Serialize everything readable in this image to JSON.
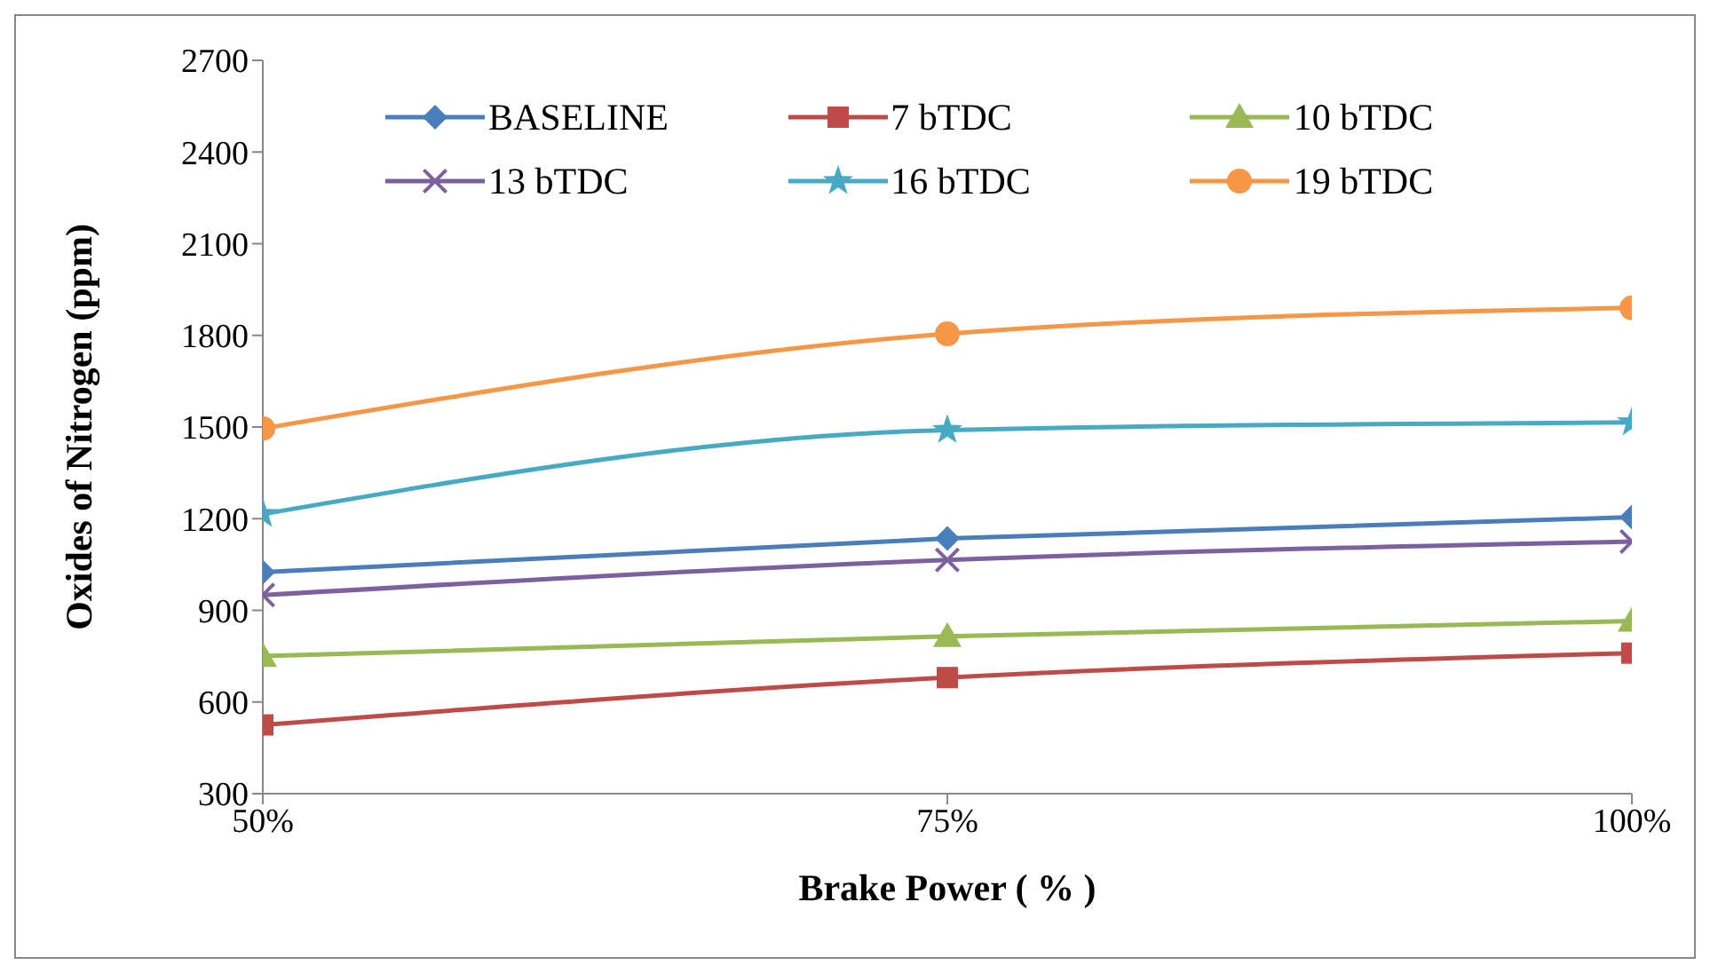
{
  "chart_data": {
    "type": "line",
    "xlabel": "Brake Power ( % )",
    "ylabel": "Oxides of Nitrogen (ppm)",
    "categories": [
      "50%",
      "75%",
      "100%"
    ],
    "ylim": [
      300,
      2700
    ],
    "yticks": [
      300,
      600,
      900,
      1200,
      1500,
      1800,
      2100,
      2400,
      2700
    ],
    "grid": false,
    "legend": "top",
    "line_style": "solid",
    "series": [
      {
        "name": "BASELINE",
        "color": "#4a7ebb",
        "marker": "diamond",
        "values": [
          1025,
          1135,
          1205
        ]
      },
      {
        "name": "7 bTDC",
        "color": "#be4b48",
        "marker": "square",
        "values": [
          525,
          680,
          760
        ]
      },
      {
        "name": "10 bTDC",
        "color": "#98b954",
        "marker": "triangle",
        "values": [
          750,
          815,
          865
        ]
      },
      {
        "name": "13 bTDC",
        "color": "#7d60a0",
        "marker": "cross",
        "values": [
          950,
          1065,
          1125
        ]
      },
      {
        "name": "16 bTDC",
        "color": "#46aac5",
        "marker": "star",
        "values": [
          1215,
          1490,
          1515
        ]
      },
      {
        "name": "19 bTDC",
        "color": "#f79646",
        "marker": "circle",
        "values": [
          1495,
          1805,
          1890
        ]
      }
    ]
  }
}
